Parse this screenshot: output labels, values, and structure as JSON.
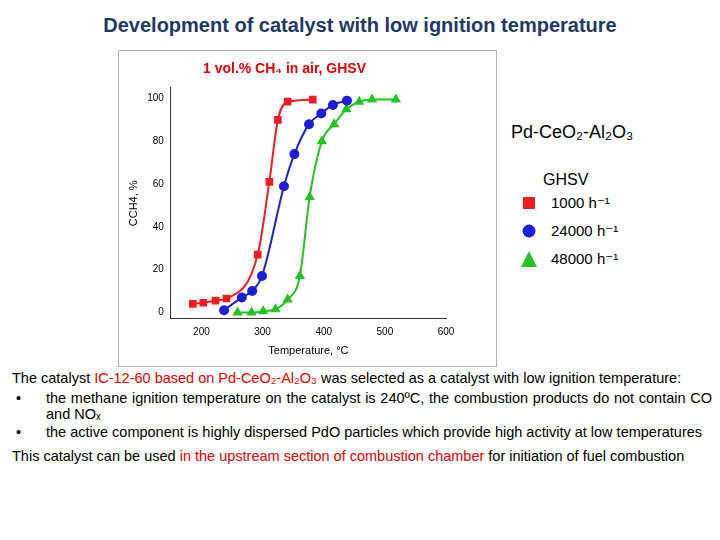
{
  "slide": {
    "title": "Development of catalyst with low ignition temperature",
    "intro": [
      {
        "text": "The catalyst "
      },
      {
        "text": "IC-12-60 based on Pd-CeO₂-Al₂O₃",
        "emphasis": true
      },
      {
        "text": " was selected as a catalyst with low ignition temperature:"
      }
    ],
    "bullets": [
      [
        {
          "text": "the methane ignition temperature on the catalyst is 240ºC, the combustion products do not contain CO and NOₓ"
        }
      ],
      [
        {
          "text": "the active component is highly dispersed PdO particles which provide high activity at low temperatures"
        }
      ]
    ],
    "closing": [
      {
        "text": "This catalyst can be used "
      },
      {
        "text": "in the upstream section of combustion chamber",
        "emphasis": true
      },
      {
        "text": " for initiation of fuel combustion"
      }
    ]
  },
  "chart_data": {
    "type": "line",
    "title": "1 vol.% CH₄ in air, GHSV",
    "x_label": "Temperature, °C",
    "y_label": "CCH4, %",
    "annotation": "Pd-CeO₂-Al₂O₃",
    "legend_title": "GHSV",
    "legend": "right",
    "grid": false,
    "xlim": [
      150,
      600
    ],
    "xticks": [
      200,
      300,
      400,
      500,
      600
    ],
    "ylim": [
      -3,
      105
    ],
    "yticks": [
      0,
      20,
      40,
      60,
      80,
      100
    ],
    "series": [
      {
        "name": "1000 h⁻¹",
        "color": "#ee1c25",
        "marker": "square",
        "x": [
          186,
          203,
          223,
          241,
          292,
          311,
          325,
          341,
          382
        ],
        "values": [
          4,
          4.5,
          5.5,
          6.5,
          27,
          61,
          90,
          98.5,
          99.5
        ]
      },
      {
        "name": "24000 h⁻¹",
        "color": "#1f1fd9",
        "marker": "circle",
        "x": [
          237,
          266,
          283,
          299,
          335,
          352,
          376,
          396,
          415,
          438
        ],
        "values": [
          1,
          7,
          10,
          17,
          59,
          74,
          88,
          93,
          97,
          99
        ]
      },
      {
        "name": "48000 h⁻¹",
        "color": "#22c322",
        "marker": "triangle",
        "x": [
          259,
          282,
          301,
          321,
          341,
          361,
          377,
          397,
          417,
          437,
          458,
          479,
          518
        ],
        "values": [
          0,
          0,
          0.5,
          1.5,
          6,
          17,
          54,
          80,
          88,
          95,
          98.5,
          99.5,
          99.5
        ]
      }
    ]
  }
}
